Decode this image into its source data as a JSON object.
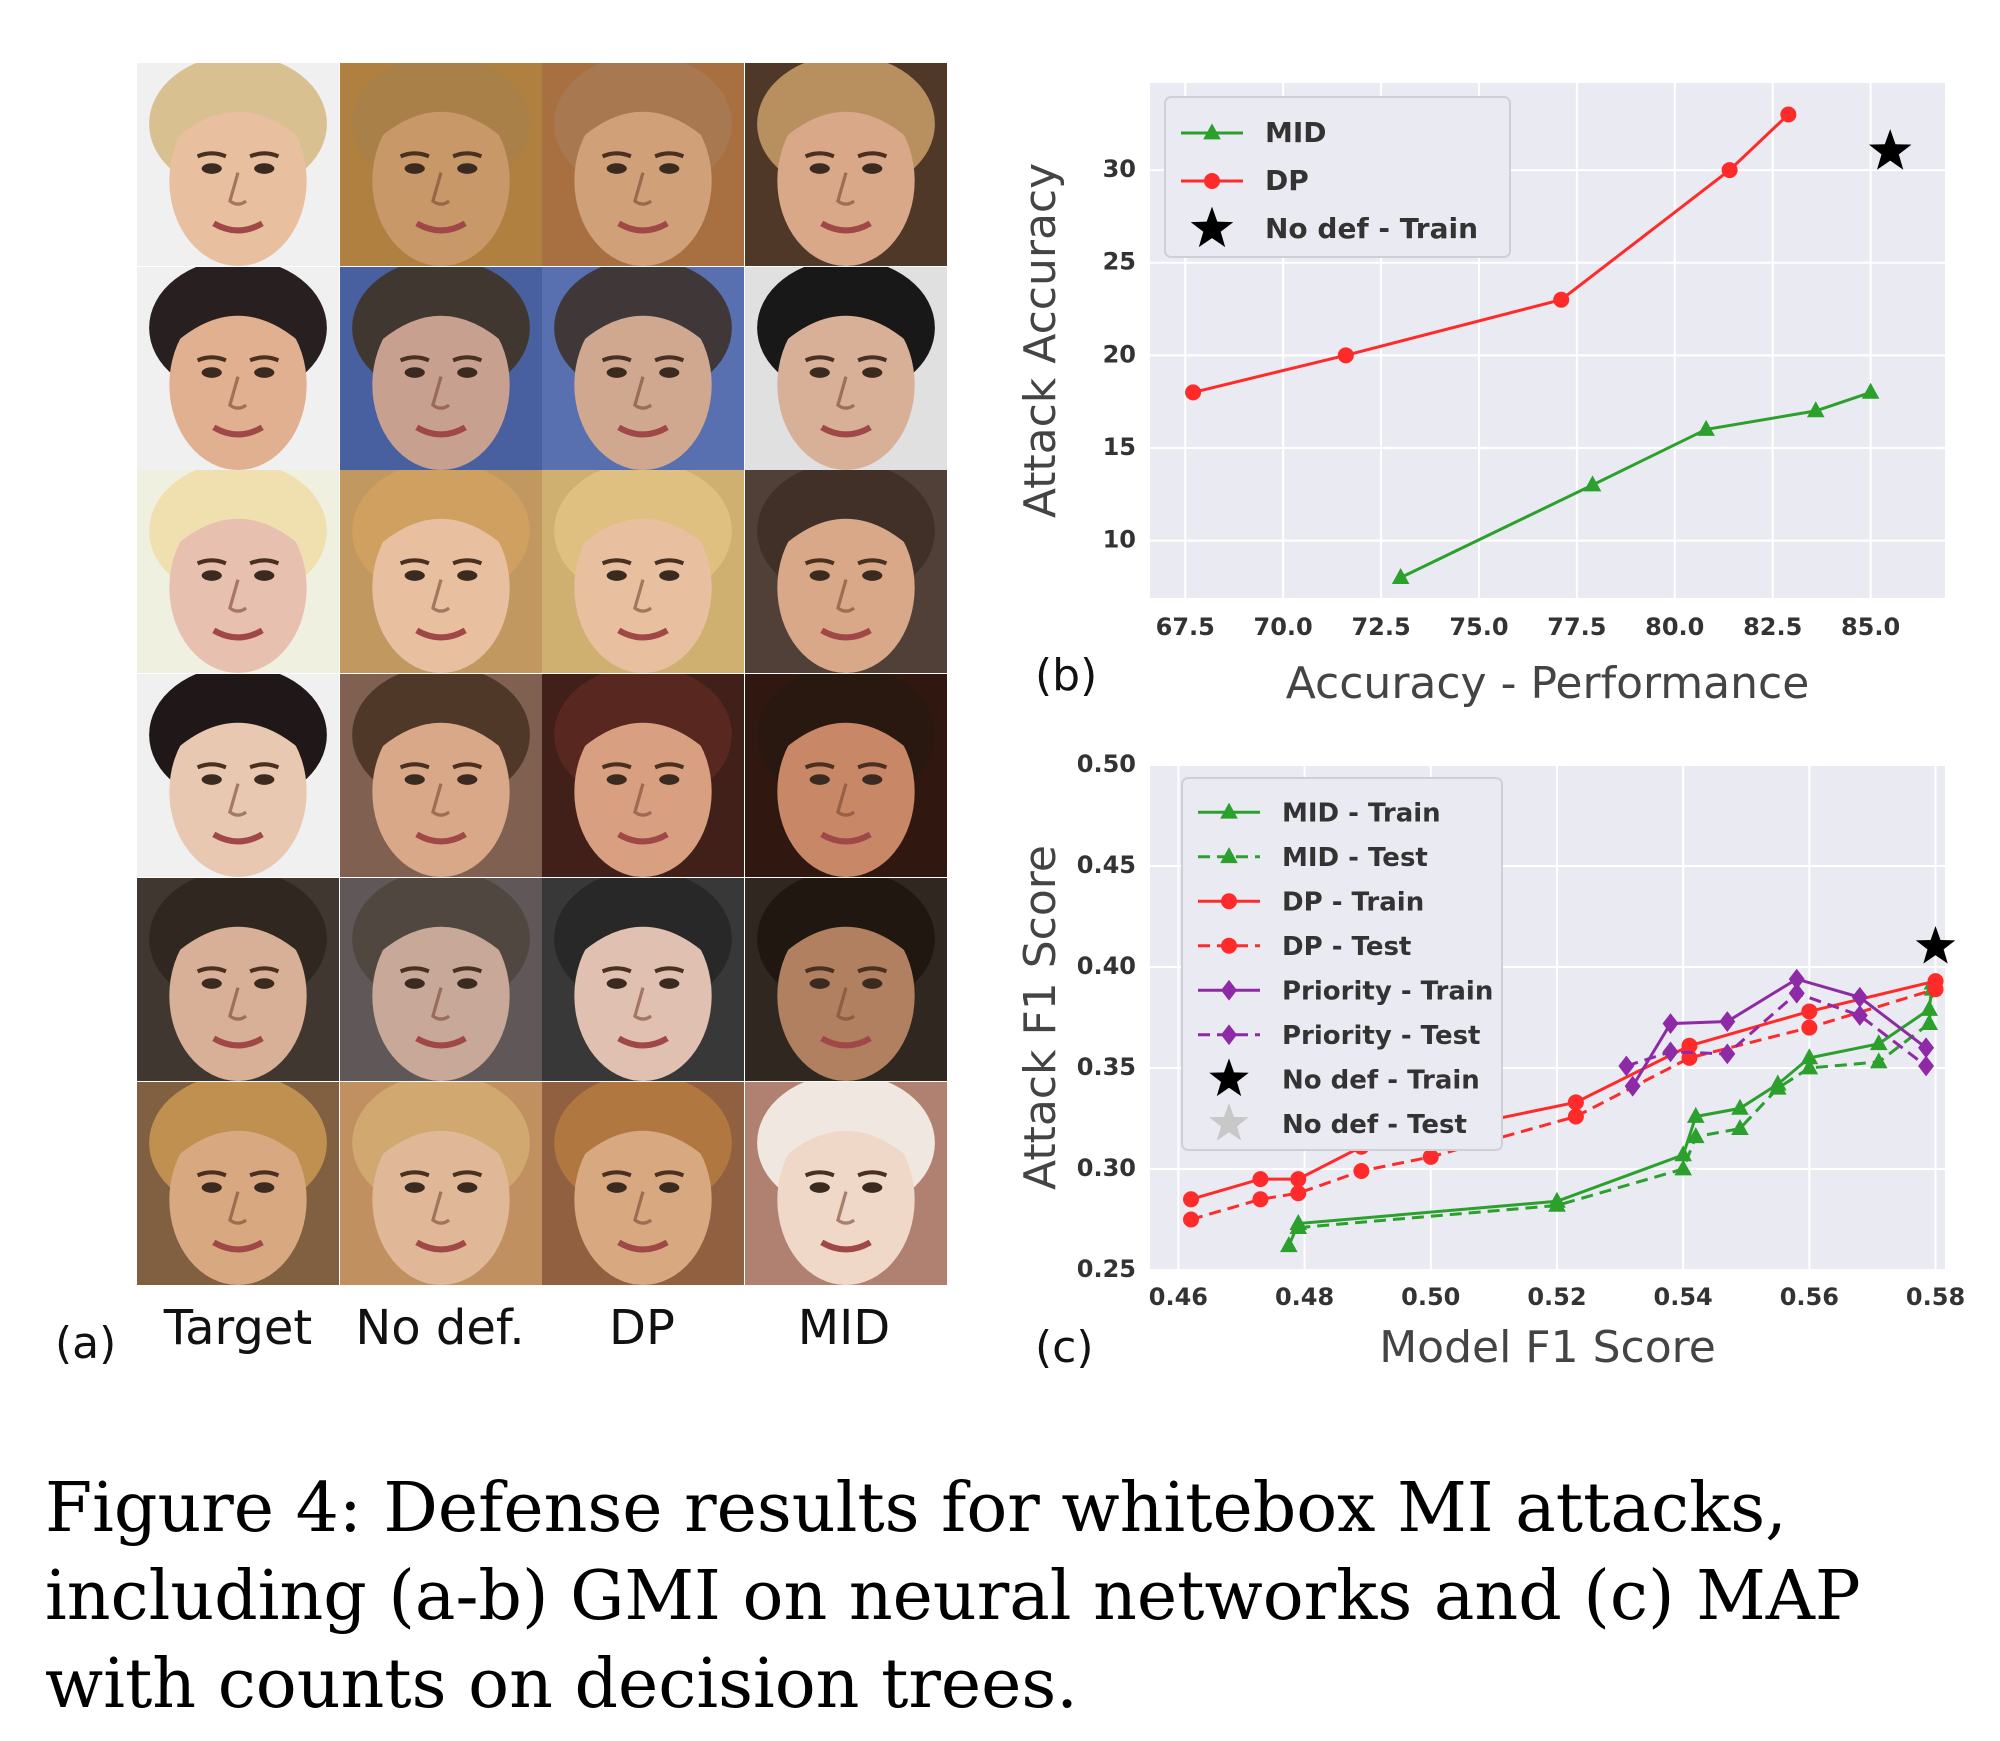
{
  "panel_a": {
    "letter": "(a)",
    "columns": [
      "Target",
      "No def.",
      "DP",
      "MID"
    ],
    "faces": [
      [
        {
          "skin": "#e8c0a0",
          "hair": "#d8c090",
          "bg": "#f0f0f0"
        },
        {
          "skin": "#c89868",
          "hair": "#a88048",
          "bg": "#b08040"
        },
        {
          "skin": "#d0a078",
          "hair": "#a87850",
          "bg": "#a87040"
        },
        {
          "skin": "#d8a888",
          "hair": "#b89060",
          "bg": "#503828"
        }
      ],
      [
        {
          "skin": "#e0b090",
          "hair": "#282020",
          "bg": "#f0f0f0"
        },
        {
          "skin": "#c8a090",
          "hair": "#403830",
          "bg": "#4860a0"
        },
        {
          "skin": "#d0a890",
          "hair": "#403838",
          "bg": "#5870b0"
        },
        {
          "skin": "#d8b098",
          "hair": "#181818",
          "bg": "#e0e0e0"
        }
      ],
      [
        {
          "skin": "#e8c0b0",
          "hair": "#f0e0b0",
          "bg": "#f0f0e0"
        },
        {
          "skin": "#e8c0a0",
          "hair": "#d0a060",
          "bg": "#c09860"
        },
        {
          "skin": "#e8c0a0",
          "hair": "#e0c080",
          "bg": "#d0b070"
        },
        {
          "skin": "#d8a888",
          "hair": "#403028",
          "bg": "#504038"
        }
      ],
      [
        {
          "skin": "#e8c8b0",
          "hair": "#201818",
          "bg": "#f0f0f0"
        },
        {
          "skin": "#d8a888",
          "hair": "#503828",
          "bg": "#806050"
        },
        {
          "skin": "#d8a080",
          "hair": "#582820",
          "bg": "#402018"
        },
        {
          "skin": "#c88868",
          "hair": "#281810",
          "bg": "#301810"
        }
      ],
      [
        {
          "skin": "#d8b098",
          "hair": "#302820",
          "bg": "#403830"
        },
        {
          "skin": "#c8a898",
          "hair": "#504840",
          "bg": "#605858"
        },
        {
          "skin": "#e0c0b0",
          "hair": "#282828",
          "bg": "#383838"
        },
        {
          "skin": "#b08060",
          "hair": "#201810",
          "bg": "#302820"
        }
      ],
      [
        {
          "skin": "#d8a880",
          "hair": "#c09050",
          "bg": "#806040"
        },
        {
          "skin": "#e0b898",
          "hair": "#d0a870",
          "bg": "#c09060"
        },
        {
          "skin": "#d8a880",
          "hair": "#b07840",
          "bg": "#906040"
        },
        {
          "skin": "#f0d8c8",
          "hair": "#f0e8e0",
          "bg": "#b08070"
        }
      ]
    ]
  },
  "chart_b": {
    "letter": "(b)",
    "chart_data": {
      "type": "line",
      "xlabel": "Accuracy - Performance",
      "ylabel": "Attack Accuracy",
      "xlim": [
        66.6,
        86.9
      ],
      "ylim": [
        6.9,
        34.7
      ],
      "xticks": [
        "67.5",
        "70.0",
        "72.5",
        "75.0",
        "77.5",
        "80.0",
        "82.5",
        "85.0"
      ],
      "xtick_values": [
        67.5,
        70.0,
        72.5,
        75.0,
        77.5,
        80.0,
        82.5,
        85.0
      ],
      "yticks": [
        "10",
        "15",
        "20",
        "25",
        "30"
      ],
      "ytick_values": [
        10,
        15,
        20,
        25,
        30
      ],
      "grid": true,
      "legend": "top-left",
      "series": [
        {
          "name": "MID",
          "color": "#2ca02c",
          "marker": "triangle",
          "dashed": false,
          "x": [
            73.0,
            77.9,
            80.8,
            83.6,
            85.0
          ],
          "y": [
            8,
            13,
            16,
            17,
            18
          ]
        },
        {
          "name": "DP",
          "color": "#ff2a2a",
          "marker": "circle",
          "dashed": false,
          "x": [
            67.7,
            71.6,
            77.1,
            81.4,
            82.9
          ],
          "y": [
            18,
            20,
            23,
            30,
            33
          ]
        },
        {
          "name": "No def - Train",
          "color": "#000000",
          "marker": "star",
          "dashed": false,
          "x": [
            85.5
          ],
          "y": [
            31
          ]
        }
      ]
    }
  },
  "chart_c": {
    "letter": "(c)",
    "chart_data": {
      "type": "line",
      "xlabel": "Model F1 Score",
      "ylabel": "Attack F1 Score",
      "xlim": [
        0.4555,
        0.5815
      ],
      "ylim": [
        0.25,
        0.5
      ],
      "xticks": [
        "0.46",
        "0.48",
        "0.50",
        "0.52",
        "0.54",
        "0.56",
        "0.58"
      ],
      "xtick_values": [
        0.46,
        0.48,
        0.5,
        0.52,
        0.54,
        0.56,
        0.58
      ],
      "yticks": [
        "0.25",
        "0.30",
        "0.35",
        "0.40",
        "0.45",
        "0.50"
      ],
      "ytick_values": [
        0.25,
        0.3,
        0.35,
        0.4,
        0.45,
        0.5
      ],
      "grid": true,
      "legend": "top-left",
      "series": [
        {
          "name": "MID - Train",
          "color": "#2ca02c",
          "marker": "triangle",
          "dashed": false,
          "x": [
            0.4775,
            0.479,
            0.52,
            0.54,
            0.542,
            0.549,
            0.555,
            0.56,
            0.571,
            0.579,
            0.5795
          ],
          "y": [
            0.262,
            0.273,
            0.284,
            0.307,
            0.326,
            0.33,
            0.342,
            0.355,
            0.362,
            0.379,
            0.392
          ]
        },
        {
          "name": "MID - Test",
          "color": "#2ca02c",
          "marker": "triangle",
          "dashed": true,
          "x": [
            0.479,
            0.52,
            0.54,
            0.542,
            0.549,
            0.555,
            0.56,
            0.571,
            0.579,
            0.5795
          ],
          "y": [
            0.271,
            0.282,
            0.3,
            0.316,
            0.32,
            0.34,
            0.35,
            0.353,
            0.372,
            0.389
          ]
        },
        {
          "name": "DP - Train",
          "color": "#ff2a2a",
          "marker": "circle",
          "dashed": false,
          "x": [
            0.462,
            0.473,
            0.479,
            0.489,
            0.523,
            0.541,
            0.56,
            0.58
          ],
          "y": [
            0.285,
            0.295,
            0.295,
            0.311,
            0.333,
            0.361,
            0.378,
            0.393
          ]
        },
        {
          "name": "DP - Test",
          "color": "#ff2a2a",
          "marker": "circle",
          "dashed": true,
          "x": [
            0.462,
            0.473,
            0.479,
            0.489,
            0.5,
            0.523,
            0.541,
            0.56,
            0.58
          ],
          "y": [
            0.275,
            0.285,
            0.288,
            0.299,
            0.306,
            0.326,
            0.355,
            0.37,
            0.389
          ]
        },
        {
          "name": "Priority - Train",
          "color": "#8e2aa5",
          "marker": "diamond",
          "dashed": false,
          "x": [
            0.532,
            0.538,
            0.547,
            0.558,
            0.568,
            0.5785
          ],
          "y": [
            0.341,
            0.372,
            0.373,
            0.394,
            0.385,
            0.36
          ]
        },
        {
          "name": "Priority - Test",
          "color": "#8e2aa5",
          "marker": "diamond",
          "dashed": true,
          "x": [
            0.531,
            0.538,
            0.547,
            0.558,
            0.568,
            0.5785
          ],
          "y": [
            0.351,
            0.358,
            0.357,
            0.387,
            0.376,
            0.351
          ]
        },
        {
          "name": "No def - Train",
          "color": "#000000",
          "marker": "star",
          "dashed": false,
          "x": [
            0.58
          ],
          "y": [
            0.41
          ]
        },
        {
          "name": "No def - Test",
          "color": "#c8c8c8",
          "marker": "star",
          "dashed": false,
          "x": [],
          "y": []
        }
      ]
    }
  },
  "caption": "Figure 4: Defense results for whitebox MI attacks, including (a-b) GMI on neural networks and (c) MAP with counts on decision trees."
}
